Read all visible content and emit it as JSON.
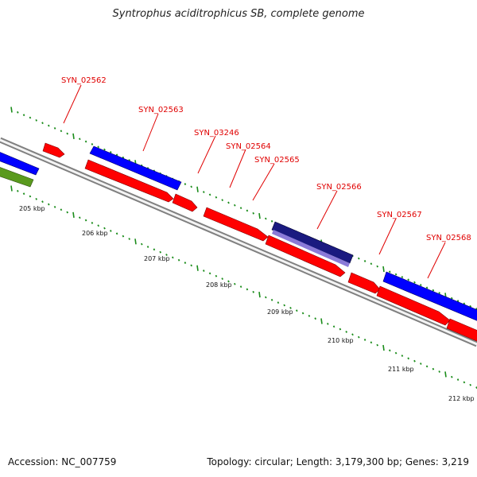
{
  "title": "Syntrophus aciditrophicus SB, complete genome",
  "footer": {
    "accession": "Accession: NC_007759",
    "summary": "Topology: circular; Length: 3,179,300 bp; Genes: 3,219"
  },
  "colors": {
    "backbone": "#808080",
    "minor_tick": "#1a8c1a",
    "gene_label": "#e00000",
    "forward_gene": "#0000ff",
    "reverse_gene": "#ff0000",
    "other_gene": "#5a9a1e",
    "highlight_gene": "#1a1a80"
  },
  "scale_labels": [
    "205 kbp",
    "206 kbp",
    "207 kbp",
    "208 kbp",
    "209 kbp",
    "210 kbp",
    "211 kbp",
    "212 kbp"
  ],
  "gene_labels": [
    "SYN_02562",
    "SYN_02563",
    "SYN_03246",
    "SYN_02564",
    "SYN_02565",
    "SYN_02566",
    "SYN_02567",
    "SYN_02568"
  ]
}
